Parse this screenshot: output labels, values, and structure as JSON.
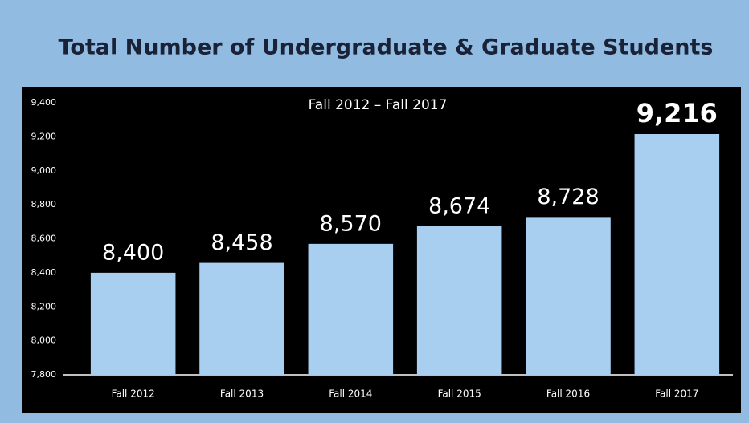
{
  "chart_data": {
    "type": "bar",
    "title": "Total Number of Undergraduate & Graduate Students",
    "subtitle": "Fall 2012 – Fall 2017",
    "categories": [
      "Fall 2012",
      "Fall 2013",
      "Fall 2014",
      "Fall 2015",
      "Fall 2016",
      "Fall 2017"
    ],
    "values": [
      8400,
      8458,
      8570,
      8674,
      8728,
      9216
    ],
    "value_labels": [
      "8,400",
      "8,458",
      "8,570",
      "8,674",
      "8,728",
      "9,216"
    ],
    "color": "#a9cff0",
    "ylim": [
      7800,
      9400
    ],
    "yticks": [
      {
        "value": 7800,
        "label": "7,800"
      },
      {
        "value": 8000,
        "label": "8,000"
      },
      {
        "value": 8200,
        "label": "8,200"
      },
      {
        "value": 8400,
        "label": "8,400"
      },
      {
        "value": 8600,
        "label": "8,600"
      },
      {
        "value": 8800,
        "label": "8,800"
      },
      {
        "value": 9000,
        "label": "9,000"
      },
      {
        "value": 9200,
        "label": "9,200"
      },
      {
        "value": 9400,
        "label": "9,400"
      }
    ],
    "grid": false
  }
}
